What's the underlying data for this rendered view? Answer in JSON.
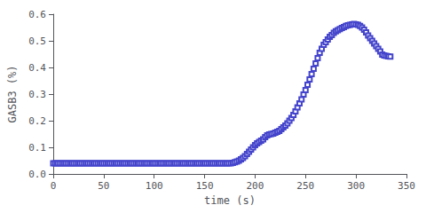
{
  "chart_data": {
    "type": "line",
    "xlabel": "time (s)",
    "ylabel": "GASB3 (%)",
    "xlim": [
      0,
      350
    ],
    "ylim": [
      0,
      0.6
    ],
    "xticks": [
      0,
      50,
      100,
      150,
      200,
      250,
      300,
      350
    ],
    "yticks": [
      {
        "value": 0.0,
        "label": "0.0"
      },
      0.1,
      0.2,
      0.3,
      0.4,
      0.5,
      0.6
    ],
    "color": "#4444cc",
    "marker": "square",
    "grid": false,
    "x": [
      0,
      2,
      4,
      6,
      8,
      10,
      12,
      14,
      16,
      18,
      20,
      22,
      24,
      26,
      28,
      30,
      32,
      34,
      36,
      38,
      40,
      42,
      44,
      46,
      48,
      50,
      52,
      54,
      56,
      58,
      60,
      62,
      64,
      66,
      68,
      70,
      72,
      74,
      76,
      78,
      80,
      82,
      84,
      86,
      88,
      90,
      92,
      94,
      96,
      98,
      100,
      102,
      104,
      106,
      108,
      110,
      112,
      114,
      116,
      118,
      120,
      122,
      124,
      126,
      128,
      130,
      132,
      134,
      136,
      138,
      140,
      142,
      144,
      146,
      148,
      150,
      152,
      154,
      156,
      158,
      160,
      162,
      164,
      166,
      168,
      170,
      172,
      174,
      176,
      178,
      180,
      182,
      184,
      186,
      188,
      190,
      192,
      194,
      196,
      198,
      200,
      202,
      204,
      206,
      208,
      210,
      212,
      214,
      216,
      218,
      220,
      222,
      224,
      226,
      228,
      230,
      232,
      234,
      236,
      238,
      240,
      242,
      244,
      246,
      248,
      250,
      252,
      254,
      256,
      258,
      260,
      262,
      264,
      266,
      268,
      270,
      272,
      274,
      276,
      278,
      280,
      282,
      284,
      286,
      288,
      290,
      292,
      294,
      296,
      298,
      300,
      302,
      304,
      306,
      308,
      310,
      312,
      314,
      316,
      318,
      320,
      322,
      324,
      326,
      328,
      330,
      332,
      334
    ],
    "values": [
      0.04,
      0.04,
      0.04,
      0.04,
      0.04,
      0.04,
      0.04,
      0.04,
      0.04,
      0.04,
      0.04,
      0.04,
      0.04,
      0.04,
      0.04,
      0.04,
      0.04,
      0.04,
      0.04,
      0.04,
      0.04,
      0.04,
      0.04,
      0.04,
      0.04,
      0.04,
      0.04,
      0.04,
      0.04,
      0.04,
      0.04,
      0.04,
      0.04,
      0.04,
      0.04,
      0.04,
      0.04,
      0.04,
      0.04,
      0.04,
      0.04,
      0.04,
      0.04,
      0.04,
      0.04,
      0.04,
      0.04,
      0.04,
      0.04,
      0.04,
      0.04,
      0.04,
      0.04,
      0.04,
      0.04,
      0.04,
      0.04,
      0.04,
      0.04,
      0.04,
      0.04,
      0.04,
      0.04,
      0.04,
      0.04,
      0.04,
      0.04,
      0.04,
      0.04,
      0.04,
      0.04,
      0.04,
      0.04,
      0.04,
      0.04,
      0.04,
      0.04,
      0.04,
      0.04,
      0.04,
      0.04,
      0.04,
      0.04,
      0.04,
      0.04,
      0.04,
      0.04,
      0.04,
      0.04,
      0.042,
      0.044,
      0.047,
      0.05,
      0.055,
      0.06,
      0.067,
      0.075,
      0.083,
      0.092,
      0.1,
      0.108,
      0.115,
      0.12,
      0.125,
      0.13,
      0.138,
      0.145,
      0.148,
      0.15,
      0.152,
      0.155,
      0.158,
      0.162,
      0.168,
      0.175,
      0.182,
      0.19,
      0.2,
      0.21,
      0.222,
      0.235,
      0.25,
      0.265,
      0.28,
      0.298,
      0.315,
      0.335,
      0.355,
      0.375,
      0.395,
      0.415,
      0.435,
      0.455,
      0.47,
      0.485,
      0.495,
      0.505,
      0.515,
      0.522,
      0.53,
      0.536,
      0.54,
      0.544,
      0.548,
      0.552,
      0.556,
      0.558,
      0.56,
      0.562,
      0.563,
      0.562,
      0.56,
      0.556,
      0.55,
      0.542,
      0.532,
      0.52,
      0.51,
      0.5,
      0.49,
      0.48,
      0.47,
      0.46,
      0.448,
      0.445,
      0.443,
      0.442,
      0.441
    ]
  }
}
